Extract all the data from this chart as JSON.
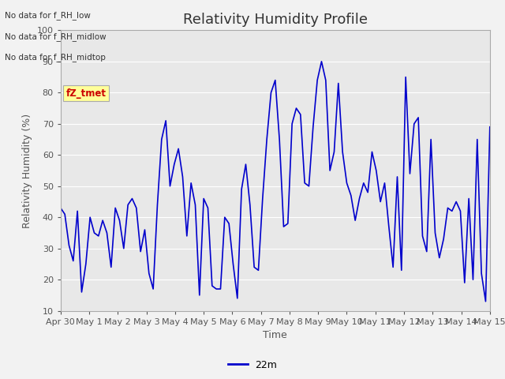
{
  "title": "Relativity Humidity Profile",
  "ylabel": "Relativity Humidity (%)",
  "xlabel": "Time",
  "ylim": [
    10,
    100
  ],
  "yticks": [
    10,
    20,
    30,
    40,
    50,
    60,
    70,
    80,
    90,
    100
  ],
  "line_color": "#0000CC",
  "line_width": 1.2,
  "legend_label": "22m",
  "no_data_texts": [
    "No data for f_RH_low",
    "No data for f_RH_midlow",
    "No data for f_RH_midtop"
  ],
  "watermark_text": "fZ_tmet",
  "watermark_color": "#CC0000",
  "watermark_bg": "#FFFF99",
  "x_tick_labels": [
    "Apr 30",
    "May 1",
    "May 2",
    "May 3",
    "May 4",
    "May 5",
    "May 6",
    "May 7",
    "May 8",
    "May 9",
    "May 10",
    "May 11",
    "May 12",
    "May 13",
    "May 14",
    "May 15"
  ],
  "rh_values": [
    43,
    41,
    31,
    26,
    42,
    16,
    25,
    40,
    35,
    34,
    39,
    35,
    24,
    43,
    39,
    30,
    44,
    46,
    43,
    29,
    36,
    22,
    17,
    44,
    65,
    71,
    50,
    57,
    62,
    53,
    34,
    51,
    44,
    15,
    46,
    43,
    18,
    17,
    17,
    40,
    38,
    25,
    14,
    49,
    57,
    44,
    24,
    23,
    46,
    65,
    80,
    84,
    65,
    37,
    38,
    70,
    75,
    73,
    51,
    50,
    69,
    84,
    90,
    84,
    55,
    61,
    83,
    61,
    51,
    47,
    39,
    46,
    51,
    48,
    61,
    55,
    45,
    51,
    37,
    24,
    53,
    23,
    85,
    54,
    70,
    72,
    34,
    29,
    65,
    35,
    27,
    33,
    43,
    42,
    45,
    42,
    19,
    46,
    20,
    65,
    22,
    13,
    69
  ],
  "fig_bg_color": "#F2F2F2",
  "plot_bg_color": "#E8E8E8",
  "grid_color": "#FFFFFF",
  "title_fontsize": 13,
  "tick_fontsize": 8,
  "label_fontsize": 9
}
